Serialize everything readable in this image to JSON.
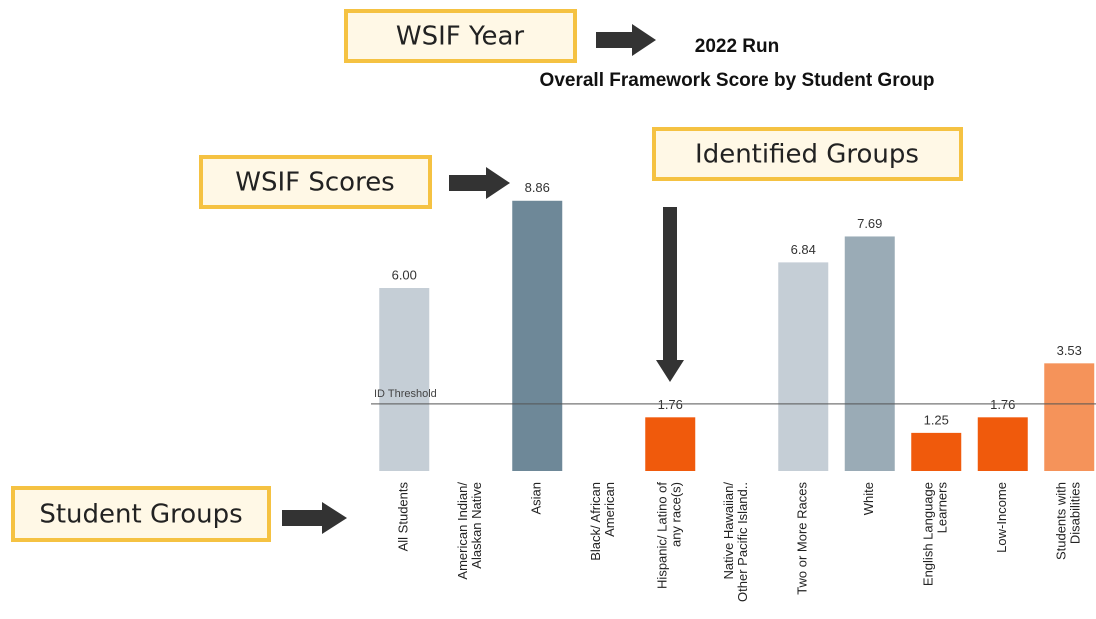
{
  "chart_data": {
    "type": "bar",
    "title": "2022 Run",
    "subtitle": "Overall Framework Score by Student Group",
    "categories": [
      "All Students",
      "American Indian/\nAlaskan Native",
      "Asian",
      "Black/ African\nAmerican",
      "Hispanic/ Latino of\nany race(s)",
      "Native Hawaiian/\nOther Pacific Island..",
      "Two or More Races",
      "White",
      "English Language\nLearners",
      "Low-Income",
      "Students with\nDisabilities"
    ],
    "values": [
      6.0,
      null,
      8.86,
      null,
      1.76,
      null,
      6.84,
      7.69,
      1.25,
      1.76,
      3.53
    ],
    "value_labels": [
      "6.00",
      null,
      "8.86",
      null,
      "1.76",
      null,
      "6.84",
      "7.69",
      "1.25",
      "1.76",
      "3.53"
    ],
    "colors": [
      "#c5ced6",
      null,
      "#6e8898",
      null,
      "#f05a0c",
      null,
      "#c5ced6",
      "#9aabb6",
      "#f05a0c",
      "#f05a0c",
      "#f5935a"
    ],
    "ylim": [
      0,
      9
    ],
    "threshold": {
      "label": "ID Threshold",
      "value": 2.2
    },
    "annotations": [
      "WSIF Year",
      "WSIF Scores",
      "Identified Groups",
      "Student Groups"
    ]
  }
}
